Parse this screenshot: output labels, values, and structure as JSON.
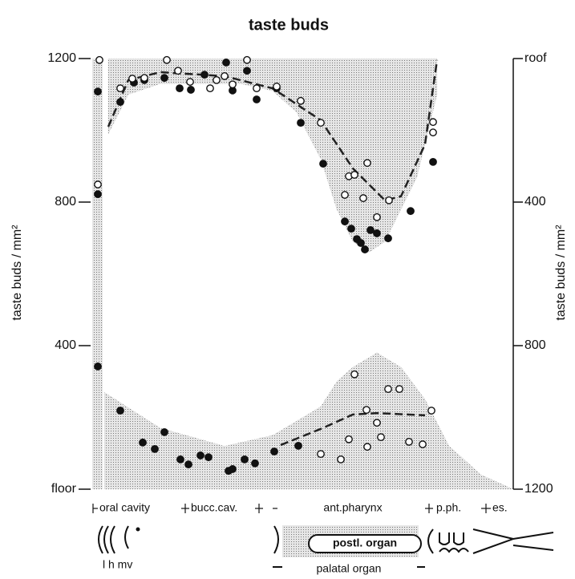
{
  "chart_data": {
    "type": "scatter",
    "title": "taste buds",
    "ylabel": "taste buds / mm²",
    "y2label": "taste buds / mm²",
    "xlim": [
      0,
      525
    ],
    "ylim": [
      0,
      1200
    ],
    "yticks": [
      {
        "value": 0,
        "label": "floor"
      },
      400,
      800,
      1200
    ],
    "y2lim": [
      1200,
      0
    ],
    "y2ticks": [
      {
        "value": 0,
        "label": "roof"
      },
      400,
      800,
      1200
    ],
    "series": [
      {
        "style": "band",
        "axis": "y2",
        "base": 0,
        "color": "#bdbdbd",
        "x": [
          20,
          45,
          85,
          185,
          225,
          255,
          285,
          305,
          325,
          345,
          365,
          385,
          405,
          430,
          430
        ],
        "values": [
          210,
          100,
          70,
          70,
          90,
          150,
          280,
          420,
          510,
          540,
          510,
          420,
          330,
          100,
          0
        ]
      },
      {
        "style": "band",
        "axis": "y",
        "base": 0,
        "color": "#bdbdbd",
        "x": [
          15,
          85,
          165,
          225,
          285,
          305,
          325,
          355,
          385,
          415,
          445,
          485,
          525
        ],
        "values": [
          270,
          170,
          120,
          150,
          230,
          300,
          340,
          380,
          340,
          250,
          120,
          40,
          0
        ]
      },
      {
        "style": "dashed",
        "axis": "y2",
        "color": "#222",
        "x": [
          20,
          45,
          85,
          165,
          225,
          285,
          325,
          365,
          385,
          415,
          430
        ],
        "values": [
          190,
          60,
          38,
          49,
          83,
          172,
          306,
          395,
          384,
          239,
          4
        ]
      },
      {
        "style": "dashed",
        "axis": "y",
        "color": "#222",
        "x": [
          235,
          285,
          325,
          355,
          415
        ],
        "values": [
          123,
          168,
          208,
          212,
          206
        ]
      },
      {
        "style": "points",
        "marker": "filled",
        "axis": "y2",
        "color": "#111",
        "x": [
          7,
          7,
          35,
          52,
          65,
          90,
          109,
          123,
          140,
          167,
          175,
          193,
          205,
          230,
          260,
          288,
          315,
          323,
          330,
          335,
          340,
          347,
          355,
          369,
          397,
          425
        ],
        "values": [
          378,
          92,
          121,
          67,
          60,
          54,
          83,
          87,
          45,
          11,
          89,
          34,
          114,
          83,
          179,
          293,
          454,
          474,
          503,
          514,
          532,
          478,
          487,
          501,
          425,
          288
        ]
      },
      {
        "style": "points",
        "marker": "open",
        "axis": "y2",
        "color": "#111",
        "x": [
          7,
          9,
          35,
          50,
          65,
          93,
          107,
          122,
          147,
          155,
          165,
          175,
          193,
          205,
          230,
          260,
          285,
          315,
          320,
          327,
          343,
          338,
          355,
          370,
          425,
          425
        ],
        "values": [
          351,
          4,
          83,
          56,
          54,
          4,
          34,
          65,
          83,
          60,
          49,
          72,
          4,
          83,
          78,
          118,
          179,
          380,
          328,
          324,
          291,
          389,
          442,
          395,
          206,
          177
        ]
      },
      {
        "style": "points",
        "marker": "filled",
        "axis": "y",
        "color": "#111",
        "x": [
          7,
          35,
          63,
          78,
          90,
          110,
          120,
          135,
          145,
          170,
          175,
          190,
          203,
          227,
          257
        ],
        "values": [
          342,
          219,
          130,
          112,
          159,
          83,
          69,
          94,
          89,
          51,
          56,
          83,
          72,
          105,
          121
        ]
      },
      {
        "style": "points",
        "marker": "open",
        "axis": "y",
        "color": "#111",
        "x": [
          285,
          310,
          320,
          327,
          342,
          343,
          355,
          360,
          369,
          383,
          395,
          412,
          423
        ],
        "values": [
          98,
          83,
          139,
          320,
          221,
          118,
          185,
          145,
          279,
          279,
          132,
          125,
          219
        ]
      }
    ],
    "regions": [
      "oral cavity",
      "bucc.cav.",
      "ant.pharynx",
      "p.ph.",
      "es."
    ],
    "annotations": [
      "l h mv",
      "postl. organ",
      "palatal organ"
    ]
  }
}
